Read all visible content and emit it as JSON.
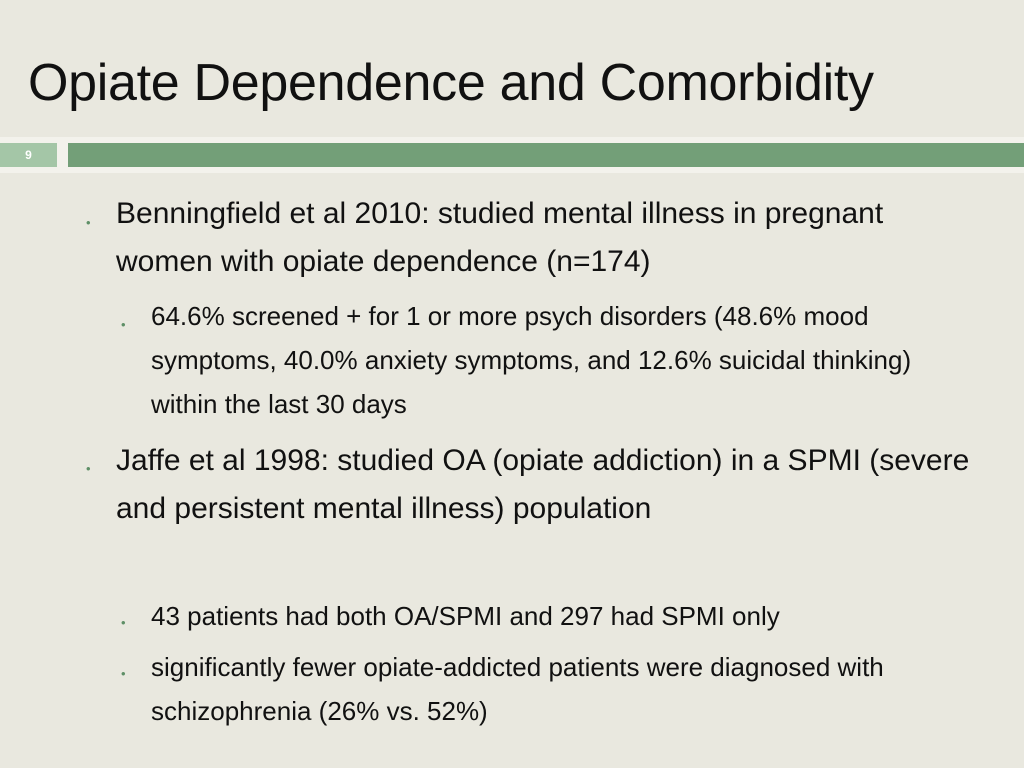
{
  "slide": {
    "title": "Opiate Dependence and Comorbidity",
    "number": "9"
  },
  "content": {
    "items": [
      {
        "level": 1,
        "text": "Benningfield et al 2010: studied mental illness in pregnant women with opiate dependence (n=174)"
      },
      {
        "level": 2,
        "text": "64.6% screened + for 1 or more psych disorders (48.6% mood symptoms, 40.0% anxiety symptoms, and 12.6% suicidal thinking) within the last 30 days"
      },
      {
        "level": 1,
        "text": "Jaffe et al 1998: studied OA (opiate addiction) in a SPMI (severe and persistent mental illness) population"
      },
      {
        "level": 2,
        "text": "43 patients had both OA/SPMI and 297 had SPMI only"
      },
      {
        "level": 2,
        "text": "significantly fewer opiate-addicted patients were diagnosed with schizophrenia (26% vs. 52%)"
      }
    ]
  },
  "theme": {
    "background": "#e9e8df",
    "accent_green": "#739f78",
    "accent_green_light": "#a4c6a7",
    "bullet_color": "#5e8f67",
    "text_color": "#111111"
  }
}
